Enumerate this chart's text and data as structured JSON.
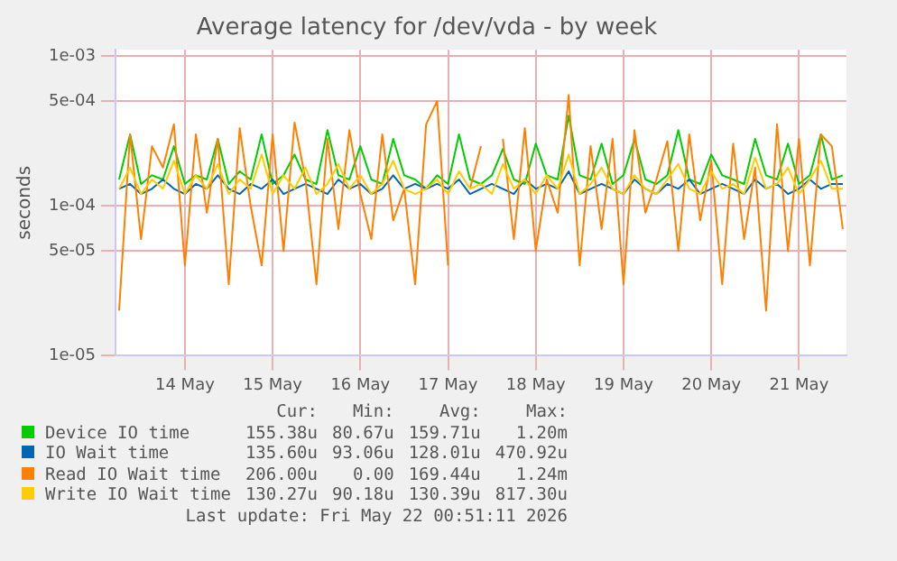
{
  "chart_data": {
    "type": "line",
    "title": "Average latency for /dev/vda - by week",
    "ylabel": "seconds",
    "log": "y",
    "grid": true,
    "legend": "bottom",
    "marker": "none",
    "line_style": "solid",
    "xlim": [
      "2026-05-13T17:00",
      "2026-05-22T01:00"
    ],
    "xticks": [
      {
        "value": "2026-05-14T12:00",
        "label": "14 May"
      },
      {
        "value": "2026-05-15T12:00",
        "label": "15 May"
      },
      {
        "value": "2026-05-16T12:00",
        "label": "16 May"
      },
      {
        "value": "2026-05-17T12:00",
        "label": "17 May"
      },
      {
        "value": "2026-05-18T12:00",
        "label": "18 May"
      },
      {
        "value": "2026-05-19T12:00",
        "label": "19 May"
      },
      {
        "value": "2026-05-20T12:00",
        "label": "20 May"
      },
      {
        "value": "2026-05-21T12:00",
        "label": "21 May"
      }
    ],
    "ylim": [
      1e-05,
      0.0011
    ],
    "yticks": [
      {
        "value": 1e-05,
        "label": "1e-05"
      },
      {
        "value": 5e-05,
        "label": "5e-05"
      },
      {
        "value": 0.0001,
        "label": "1e-04"
      },
      {
        "value": 0.0005,
        "label": "5e-04"
      },
      {
        "value": 0.001,
        "label": "1e-03"
      }
    ],
    "x": [
      "2026-05-13T18:00",
      "2026-05-13T21:00",
      "2026-05-14T00:00",
      "2026-05-14T03:00",
      "2026-05-14T06:00",
      "2026-05-14T09:00",
      "2026-05-14T12:00",
      "2026-05-14T15:00",
      "2026-05-14T18:00",
      "2026-05-14T21:00",
      "2026-05-15T00:00",
      "2026-05-15T03:00",
      "2026-05-15T06:00",
      "2026-05-15T09:00",
      "2026-05-15T12:00",
      "2026-05-15T15:00",
      "2026-05-15T18:00",
      "2026-05-15T21:00",
      "2026-05-16T00:00",
      "2026-05-16T03:00",
      "2026-05-16T06:00",
      "2026-05-16T09:00",
      "2026-05-16T12:00",
      "2026-05-16T15:00",
      "2026-05-16T18:00",
      "2026-05-16T21:00",
      "2026-05-17T00:00",
      "2026-05-17T03:00",
      "2026-05-17T06:00",
      "2026-05-17T09:00",
      "2026-05-17T12:00",
      "2026-05-17T15:00",
      "2026-05-17T18:00",
      "2026-05-17T21:00",
      "2026-05-18T00:00",
      "2026-05-18T03:00",
      "2026-05-18T06:00",
      "2026-05-18T09:00",
      "2026-05-18T12:00",
      "2026-05-18T15:00",
      "2026-05-18T18:00",
      "2026-05-18T21:00",
      "2026-05-19T00:00",
      "2026-05-19T03:00",
      "2026-05-19T06:00",
      "2026-05-19T09:00",
      "2026-05-19T12:00",
      "2026-05-19T15:00",
      "2026-05-19T18:00",
      "2026-05-19T21:00",
      "2026-05-20T00:00",
      "2026-05-20T03:00",
      "2026-05-20T06:00",
      "2026-05-20T09:00",
      "2026-05-20T12:00",
      "2026-05-20T15:00",
      "2026-05-20T18:00",
      "2026-05-20T21:00",
      "2026-05-21T00:00",
      "2026-05-21T03:00",
      "2026-05-21T06:00",
      "2026-05-21T09:00",
      "2026-05-21T12:00",
      "2026-05-21T15:00",
      "2026-05-21T18:00",
      "2026-05-21T21:00",
      "2026-05-22T00:00"
    ],
    "series": [
      {
        "name": "Device IO time",
        "color": "#00cc00",
        "values": [
          0.00015,
          0.0003,
          0.00014,
          0.00016,
          0.00015,
          0.00025,
          0.00014,
          0.00016,
          0.00015,
          0.00028,
          0.00014,
          0.00017,
          0.00015,
          0.0003,
          0.00014,
          0.00016,
          0.00022,
          0.00015,
          0.00014,
          0.00032,
          0.00016,
          0.00015,
          0.00025,
          0.00015,
          0.00014,
          0.00028,
          0.00016,
          0.00015,
          0.00013,
          0.00016,
          0.00014,
          0.0003,
          0.00015,
          0.00014,
          0.00016,
          0.00024,
          0.00015,
          0.00014,
          0.00026,
          0.00016,
          0.00015,
          0.0004,
          0.00016,
          0.00015,
          0.00026,
          0.00014,
          0.00016,
          0.00028,
          0.00015,
          0.00014,
          0.00016,
          0.00032,
          0.00015,
          0.00014,
          0.00022,
          0.00016,
          0.00015,
          0.00014,
          0.00028,
          0.00016,
          0.00015,
          0.00026,
          0.00014,
          0.00016,
          0.0003,
          0.00015,
          0.00016
        ]
      },
      {
        "name": "IO Wait time",
        "color": "#0066b3",
        "values": [
          0.00013,
          0.00014,
          0.00012,
          0.00013,
          0.00015,
          0.00013,
          0.00012,
          0.00014,
          0.00013,
          0.00016,
          0.00013,
          0.00012,
          0.00014,
          0.00013,
          0.00015,
          0.00012,
          0.00013,
          0.00014,
          0.00013,
          0.00012,
          0.00015,
          0.00013,
          0.00014,
          0.00012,
          0.00013,
          0.00016,
          0.00013,
          0.00014,
          0.00013,
          0.00014,
          0.00013,
          0.00015,
          0.00012,
          0.00013,
          0.00014,
          0.00013,
          0.00012,
          0.00015,
          0.00013,
          0.00014,
          0.00013,
          0.00017,
          0.00012,
          0.00013,
          0.00014,
          0.00013,
          0.00012,
          0.00015,
          0.00013,
          0.00012,
          0.00014,
          0.00013,
          0.00015,
          0.00012,
          0.00013,
          0.00014,
          0.00013,
          0.00012,
          0.00015,
          0.00013,
          0.00014,
          0.00012,
          0.00013,
          0.00015,
          0.00013,
          0.00014,
          0.00014
        ]
      },
      {
        "name": "Read IO Wait time",
        "color": "#ff8000",
        "values": [
          2e-05,
          0.0003,
          6e-05,
          0.00025,
          0.00018,
          0.00035,
          4e-05,
          0.0003,
          9e-05,
          0.00028,
          3e-05,
          0.00033,
          0.0001,
          4e-05,
          0.0003,
          5e-05,
          0.00036,
          0.00015,
          3e-05,
          0.00028,
          7e-05,
          0.00032,
          0.00012,
          6e-05,
          0.0003,
          8e-05,
          0.00013,
          3e-05,
          0.00035,
          0.0005,
          4e-05,
          null,
          0.00013,
          0.00025,
          null,
          0.00028,
          6e-05,
          0.00033,
          5e-05,
          0.00015,
          9e-05,
          0.00055,
          4e-05,
          0.00025,
          7e-05,
          0.00028,
          3e-05,
          0.00032,
          9e-05,
          0.00015,
          0.00027,
          5e-05,
          0.0003,
          8e-05,
          0.0002,
          3e-05,
          0.00026,
          6e-05,
          0.00018,
          2e-05,
          0.00035,
          5e-05,
          0.00028,
          4e-05,
          0.0003,
          0.00025,
          7e-05
        ]
      },
      {
        "name": "Write IO Wait time",
        "color": "#ffcc00",
        "values": [
          0.00013,
          0.00018,
          0.00012,
          0.00015,
          0.00013,
          0.0002,
          0.00012,
          0.00016,
          0.00013,
          0.00019,
          0.00012,
          0.00015,
          0.00013,
          0.00022,
          0.00012,
          0.00016,
          0.00013,
          0.00018,
          0.00012,
          0.00014,
          0.00019,
          0.00013,
          0.00016,
          0.00012,
          0.00014,
          0.0002,
          0.00013,
          0.00012,
          0.00013,
          0.00015,
          0.00012,
          0.00017,
          0.00013,
          0.00014,
          0.00012,
          0.00019,
          0.00013,
          0.00015,
          0.00012,
          0.00016,
          0.00013,
          0.00022,
          0.00012,
          0.00014,
          0.00018,
          0.00013,
          0.00012,
          0.00016,
          0.00013,
          0.00012,
          0.00015,
          0.00019,
          0.00013,
          0.00012,
          0.00017,
          0.00013,
          0.00014,
          0.00012,
          0.00021,
          0.00013,
          0.00014,
          0.00018,
          0.00012,
          0.00015,
          0.0002,
          0.00013,
          0.00013
        ]
      }
    ],
    "annotations": [
      "Cur:",
      "Min:",
      "Avg:",
      "Max:",
      "155.38u",
      "80.67u",
      "159.71u",
      "1.20m",
      "135.60u",
      "93.06u",
      "128.01u",
      "470.92u",
      "206.00u",
      "0.00",
      "169.44u",
      "1.24m",
      "130.27u",
      "90.18u",
      "130.39u",
      "817.30u",
      "Last update: Fri May 22 00:51:11 2026"
    ]
  }
}
